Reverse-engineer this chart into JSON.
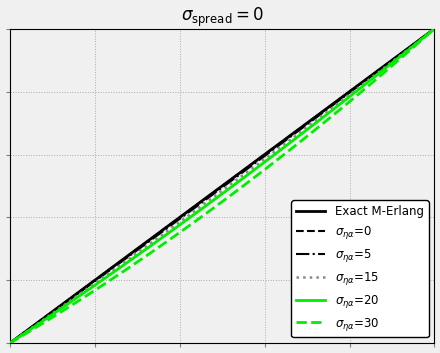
{
  "title": "$\\sigma_{\\mathrm{spread}}=0$",
  "title_fontsize": 12,
  "xlim": [
    0,
    1
  ],
  "ylim": [
    0,
    1
  ],
  "grid": true,
  "grid_color": "#aaaaaa",
  "grid_linestyle": ":",
  "grid_linewidth": 0.7,
  "background_color": "#f0f0f0",
  "series": [
    {
      "label": "Exact M-Erlang",
      "color": "#000000",
      "linestyle": "-",
      "linewidth": 2.0,
      "slope": 1.0,
      "intercept": 0.0
    },
    {
      "label": "$\\sigma_{\\eta\\alpha}$=0",
      "color": "#000000",
      "linestyle": "--",
      "linewidth": 1.5,
      "slope": 1.0,
      "intercept": 0.0
    },
    {
      "label": "$\\sigma_{\\eta\\alpha}$=5",
      "color": "#000000",
      "linestyle": "-.",
      "linewidth": 1.5,
      "slope": 1.01,
      "intercept": -0.01
    },
    {
      "label": "$\\sigma_{\\eta\\alpha}$=15",
      "color": "#888888",
      "linestyle": ":",
      "linewidth": 1.8,
      "slope": 1.03,
      "intercept": -0.03
    },
    {
      "label": "$\\sigma_{\\eta\\alpha}$=20",
      "color": "#00ee00",
      "linestyle": "-",
      "linewidth": 2.0,
      "slope": 1.06,
      "intercept": -0.06
    },
    {
      "label": "$\\sigma_{\\eta\\alpha}$=30",
      "color": "#00ee00",
      "linestyle": "--",
      "linewidth": 2.0,
      "slope": 1.12,
      "intercept": -0.12
    }
  ],
  "legend_loc": "lower right",
  "legend_fontsize": 8.5
}
